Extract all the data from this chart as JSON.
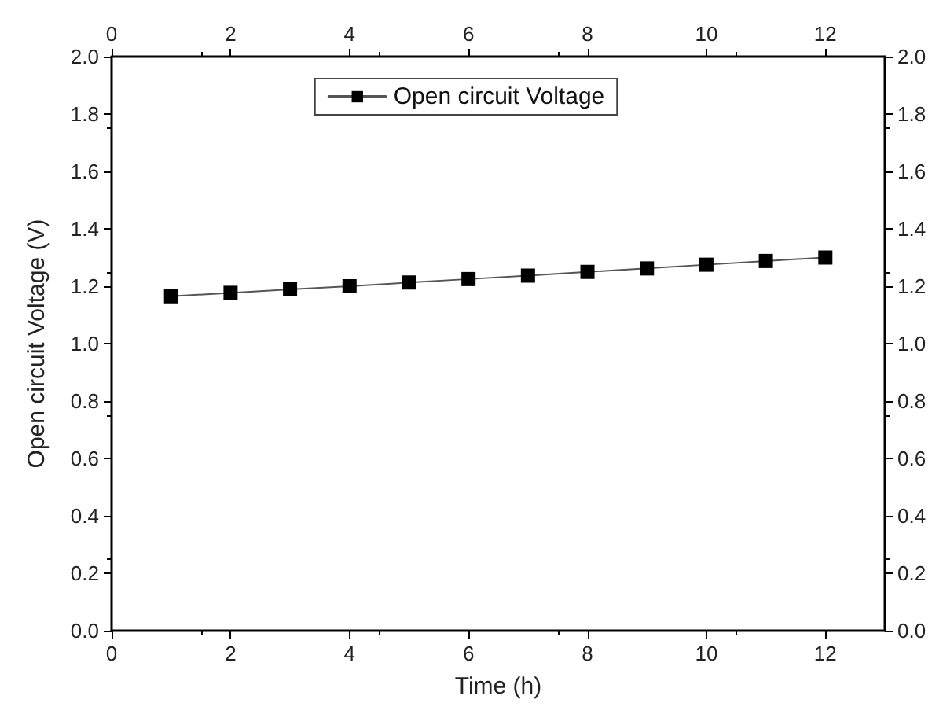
{
  "chart_data": {
    "type": "line",
    "xlabel": "Time (h)",
    "ylabel": "Open circuit Voltage (V)",
    "x": [
      1,
      2,
      3,
      4,
      5,
      6,
      7,
      8,
      9,
      10,
      11,
      12
    ],
    "series": [
      {
        "name": "Open circuit Voltage",
        "color": "#000000",
        "values": [
          1.165,
          1.177,
          1.189,
          1.2,
          1.213,
          1.225,
          1.237,
          1.25,
          1.262,
          1.275,
          1.288,
          1.3
        ]
      }
    ],
    "xlim": [
      0,
      13
    ],
    "xticks": [
      0,
      2,
      4,
      6,
      8,
      10,
      12
    ],
    "x2lim": [
      0,
      13
    ],
    "x2ticks": [
      0,
      2,
      4,
      6,
      8,
      10,
      12
    ],
    "ylim": [
      0,
      2.0
    ],
    "yticks": [
      {
        "value": 0,
        "label": "0.0"
      },
      0.2,
      0.4,
      0.6,
      0.8,
      {
        "value": 1,
        "label": "1.0"
      },
      1.2,
      1.4,
      1.6,
      1.8,
      {
        "value": 2,
        "label": "2.0"
      }
    ],
    "y2lim": [
      0,
      2.0
    ],
    "y2ticks": [
      {
        "value": 0,
        "label": "0.0"
      },
      0.2,
      0.4,
      0.6,
      0.8,
      {
        "value": 1,
        "label": "1.0"
      },
      1.2,
      1.4,
      1.6,
      1.8,
      {
        "value": 2,
        "label": "2.0"
      }
    ],
    "marker": "square",
    "line_style": "solid",
    "legend": "top",
    "grid": false
  }
}
